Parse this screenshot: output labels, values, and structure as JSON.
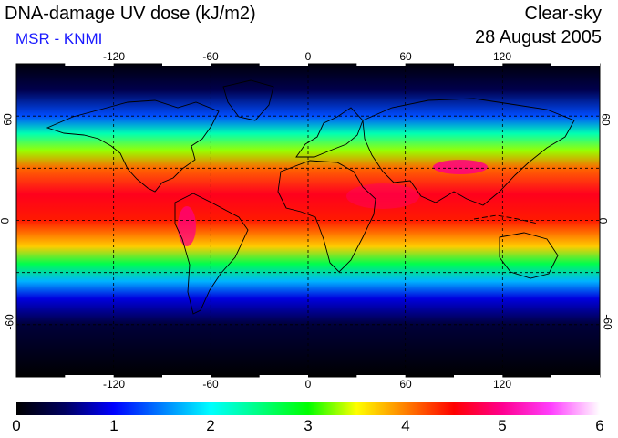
{
  "header": {
    "title": "DNA-damage UV dose (kJ/m2)",
    "source": "MSR - KNMI",
    "mode": "Clear-sky",
    "date": "28 August 2005"
  },
  "map": {
    "type": "heatmap",
    "variable": "DNA-damage UV dose",
    "unit": "kJ/m2",
    "longitude_ticks": [
      "-120",
      "-60",
      "0",
      "60",
      "120"
    ],
    "latitude_ticks": [
      "60",
      "0",
      "-60"
    ],
    "latitude_ticks_right": [
      "60",
      "0",
      "-60"
    ],
    "grid": true,
    "lon_range": [
      -180,
      180
    ],
    "lat_range": [
      -90,
      90
    ],
    "approx_zonal_profile": [
      {
        "lat": 90,
        "value": 0.05
      },
      {
        "lat": 75,
        "value": 0.4
      },
      {
        "lat": 60,
        "value": 1.3
      },
      {
        "lat": 50,
        "value": 2.3
      },
      {
        "lat": 40,
        "value": 3.3
      },
      {
        "lat": 30,
        "value": 4.1
      },
      {
        "lat": 15,
        "value": 4.6
      },
      {
        "lat": 0,
        "value": 4.4
      },
      {
        "lat": -15,
        "value": 3.7
      },
      {
        "lat": -25,
        "value": 2.7
      },
      {
        "lat": -35,
        "value": 1.7
      },
      {
        "lat": -45,
        "value": 0.9
      },
      {
        "lat": -60,
        "value": 0.3
      },
      {
        "lat": -90,
        "value": 0.0
      }
    ]
  },
  "colorbar": {
    "labels": [
      "0",
      "1",
      "2",
      "3",
      "4",
      "5",
      "6"
    ],
    "min": 0,
    "max": 6,
    "stops": [
      {
        "value": 0,
        "color": "#000000"
      },
      {
        "value": 0.5,
        "color": "#000060"
      },
      {
        "value": 1,
        "color": "#0000ff"
      },
      {
        "value": 1.5,
        "color": "#0080ff"
      },
      {
        "value": 2,
        "color": "#00ffff"
      },
      {
        "value": 2.5,
        "color": "#00ff80"
      },
      {
        "value": 3,
        "color": "#00ff00"
      },
      {
        "value": 3.5,
        "color": "#ffff00"
      },
      {
        "value": 4,
        "color": "#ff8000"
      },
      {
        "value": 4.5,
        "color": "#ff0000"
      },
      {
        "value": 5,
        "color": "#ff0090"
      },
      {
        "value": 5.5,
        "color": "#ff40ff"
      },
      {
        "value": 6,
        "color": "#ffffff"
      }
    ]
  },
  "chart_data": {
    "type": "heatmap",
    "title": "DNA-damage UV dose (kJ/m2)",
    "x_ticks": [
      "-120",
      "-60",
      "0",
      "60",
      "120"
    ],
    "y_ticks": [
      "60",
      "0",
      "-60"
    ],
    "colorbar_ticks": [
      0,
      1,
      2,
      3,
      4,
      5,
      6
    ],
    "grid": true
  }
}
